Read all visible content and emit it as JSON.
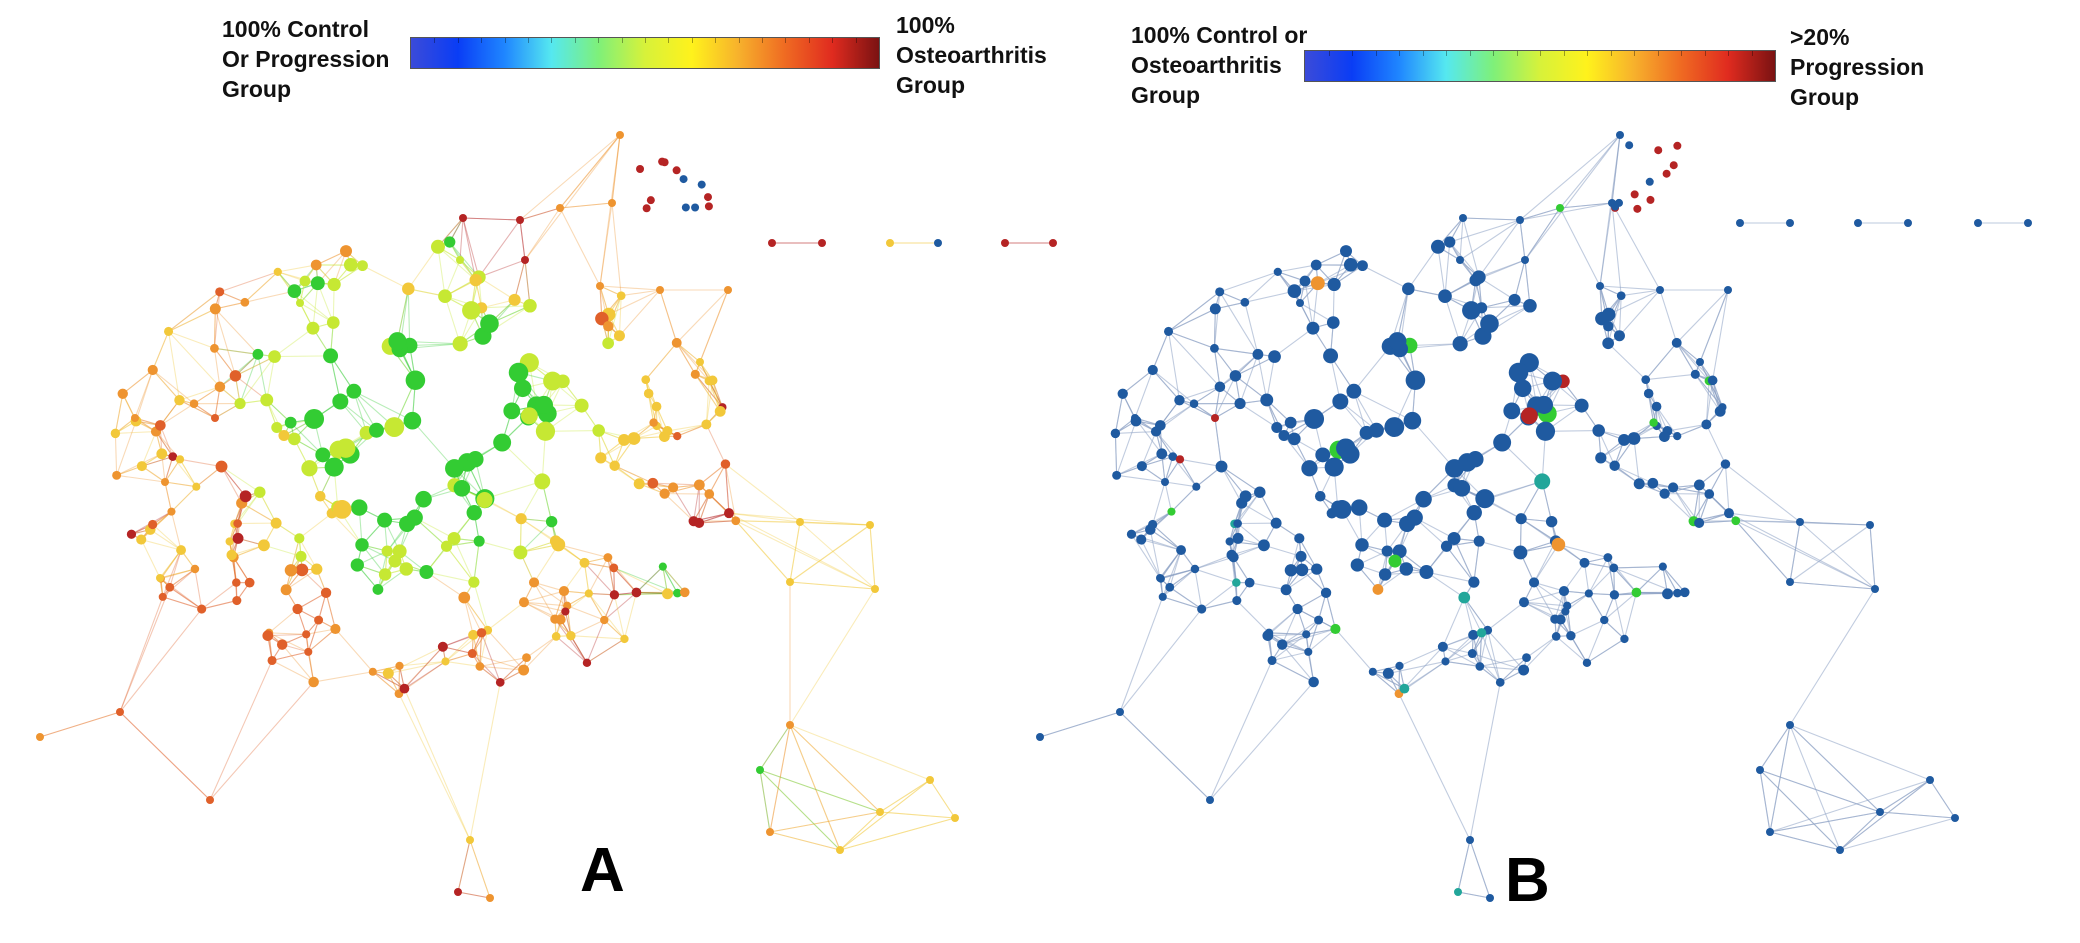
{
  "panels": [
    {
      "id": "A",
      "letter": "A",
      "scale": {
        "left_label": "100% Control\nOr Progression\nGroup",
        "right_label": "100%\nOsteoarthritis\nGroup",
        "gradient_colors": [
          "#3b4bd9",
          "#0a3df5",
          "#1f86ff",
          "#55e8f0",
          "#7ef07a",
          "#d7f23a",
          "#fff21c",
          "#f7b12c",
          "#ef6a22",
          "#e02b1f",
          "#7a1212"
        ]
      },
      "node_color_scheme": "mixed",
      "edge_color": "varies with node color"
    },
    {
      "id": "B",
      "letter": "B",
      "scale": {
        "left_label": "100% Control or\nOsteoarthritis\nGroup",
        "right_label": ">20%\nProgression\nGroup",
        "gradient_colors": [
          "#3b4bd9",
          "#0a3df5",
          "#1f86ff",
          "#55e8f0",
          "#7ef07a",
          "#d7f23a",
          "#fff21c",
          "#f7b12c",
          "#ef6a22",
          "#e02b1f",
          "#7a1212"
        ]
      },
      "node_color_scheme": "mostly blue",
      "edge_color": "#8ea3c4"
    }
  ],
  "palette": {
    "green": "#33cc33",
    "yellow_green": "#c6e833",
    "yellow": "#f2c83a",
    "orange": "#ee9430",
    "red_orange": "#e0602a",
    "red": "#b52424",
    "teal": "#22a69a",
    "blue": "#1f5aa0",
    "dark_blue": "#1b4f91"
  }
}
